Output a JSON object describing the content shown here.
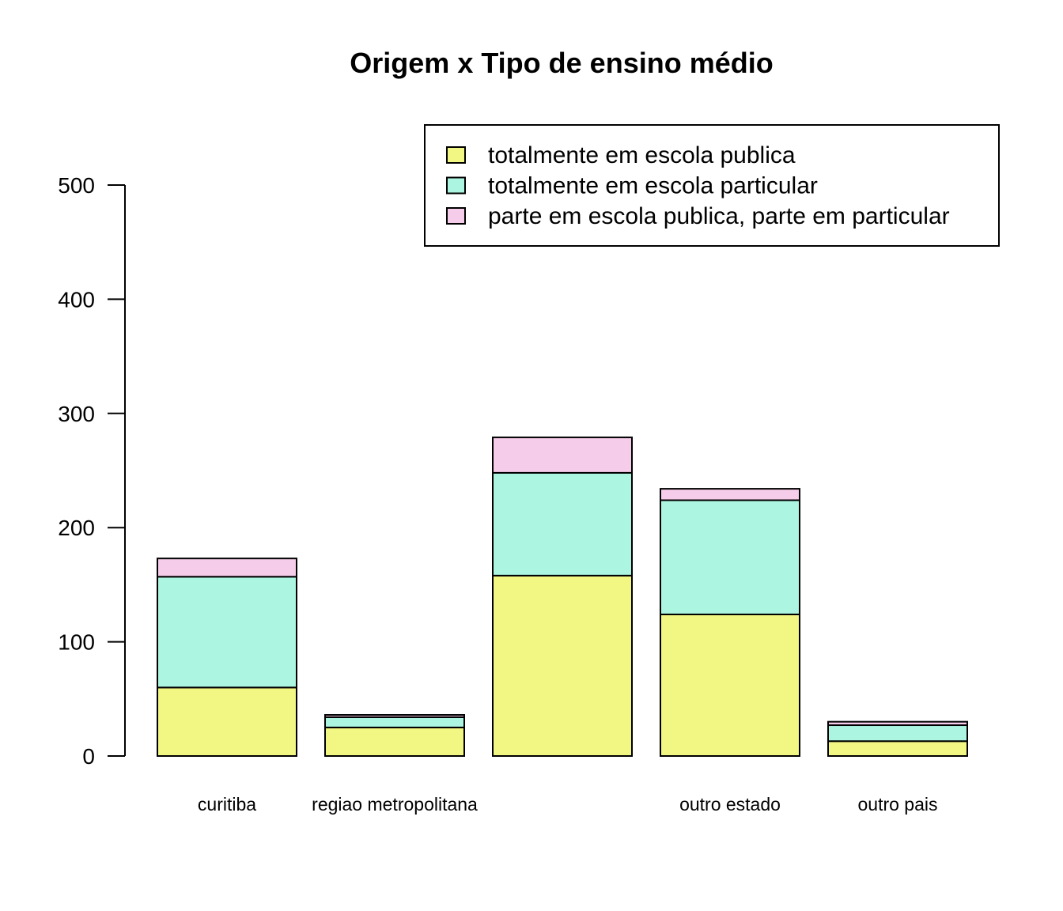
{
  "chart_data": {
    "type": "bar",
    "stacked": true,
    "title": "Origem x Tipo de ensino médio",
    "xlabel": "",
    "ylabel": "",
    "categories": [
      "curitiba",
      "regiao metropolitana",
      "",
      "outro estado",
      "outro pais"
    ],
    "series": [
      {
        "name": "totalmente em escola publica",
        "color": "#F2F683",
        "values": [
          60,
          25,
          158,
          124,
          13
        ]
      },
      {
        "name": "totalmente em escola particular",
        "color": "#ABF5E1",
        "values": [
          97,
          9,
          90,
          100,
          14
        ]
      },
      {
        "name": "parte em escola publica, parte em particular",
        "color": "#F5CCE9",
        "values": [
          16,
          2,
          31,
          10,
          3
        ]
      }
    ],
    "ylim": [
      0,
      500
    ],
    "yticks": [
      0,
      100,
      200,
      300,
      400,
      500
    ],
    "grid": false,
    "legend_position": "top-right"
  }
}
